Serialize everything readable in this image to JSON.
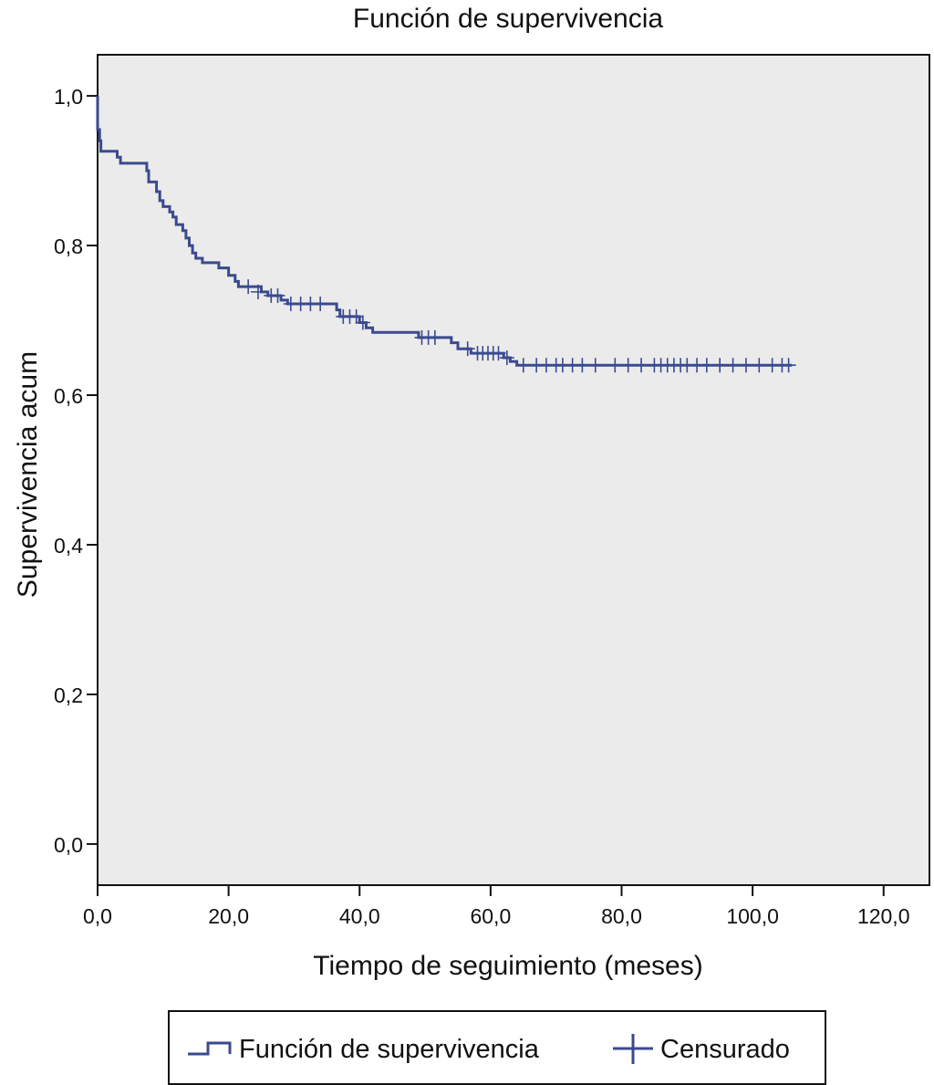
{
  "chart_data": {
    "type": "line",
    "title": "Función de supervivencia",
    "xlabel": "Tiempo de seguimiento (meses)",
    "ylabel": "Supervivencia acum",
    "xlim": [
      0,
      127
    ],
    "ylim": [
      -0.055,
      1.055
    ],
    "x_ticks": [
      0,
      20,
      40,
      60,
      80,
      100,
      120
    ],
    "x_tick_labels": [
      "0,0",
      "20,0",
      "40,0",
      "60,0",
      "80,0",
      "100,0",
      "120,0"
    ],
    "y_ticks": [
      0,
      0.2,
      0.4,
      0.6,
      0.8,
      1.0
    ],
    "y_tick_labels": [
      "0,0",
      "0,2",
      "0,4",
      "0,6",
      "0,8",
      "1,0"
    ],
    "grid": false,
    "legend": "bottom",
    "colors": {
      "series": "#3b4a8f",
      "plot_background": "#ebebeb",
      "axis": "#111111"
    },
    "series": [
      {
        "name": "Función de supervivencia",
        "step": true,
        "points": [
          [
            0,
            1.0
          ],
          [
            0,
            0.955
          ],
          [
            0.3,
            0.94
          ],
          [
            0.5,
            0.926
          ],
          [
            3,
            0.918
          ],
          [
            3.5,
            0.91
          ],
          [
            7.5,
            0.9
          ],
          [
            7.8,
            0.885
          ],
          [
            9,
            0.872
          ],
          [
            9.5,
            0.86
          ],
          [
            10,
            0.852
          ],
          [
            11,
            0.845
          ],
          [
            11.5,
            0.838
          ],
          [
            12,
            0.828
          ],
          [
            13,
            0.82
          ],
          [
            13.5,
            0.81
          ],
          [
            14,
            0.8
          ],
          [
            14.5,
            0.79
          ],
          [
            15,
            0.783
          ],
          [
            16,
            0.777
          ],
          [
            18.5,
            0.77
          ],
          [
            20,
            0.76
          ],
          [
            21,
            0.752
          ],
          [
            21.5,
            0.745
          ],
          [
            25,
            0.738
          ],
          [
            26,
            0.733
          ],
          [
            28,
            0.727
          ],
          [
            29,
            0.722
          ],
          [
            36.5,
            0.714
          ],
          [
            37,
            0.705
          ],
          [
            40,
            0.697
          ],
          [
            41,
            0.69
          ],
          [
            42,
            0.684
          ],
          [
            49,
            0.677
          ],
          [
            54,
            0.67
          ],
          [
            55,
            0.662
          ],
          [
            57,
            0.656
          ],
          [
            62,
            0.65
          ],
          [
            63,
            0.645
          ],
          [
            64,
            0.64
          ],
          [
            106,
            0.64
          ]
        ]
      },
      {
        "name": "Censurado",
        "marker": "+",
        "points": [
          [
            23,
            0.745
          ],
          [
            24.5,
            0.738
          ],
          [
            26.5,
            0.733
          ],
          [
            27.5,
            0.733
          ],
          [
            29.5,
            0.722
          ],
          [
            31,
            0.722
          ],
          [
            32.5,
            0.722
          ],
          [
            34,
            0.722
          ],
          [
            37.5,
            0.705
          ],
          [
            38.5,
            0.705
          ],
          [
            39.5,
            0.705
          ],
          [
            40.5,
            0.697
          ],
          [
            49.5,
            0.677
          ],
          [
            50.5,
            0.677
          ],
          [
            51.5,
            0.677
          ],
          [
            56.5,
            0.662
          ],
          [
            58,
            0.656
          ],
          [
            58.8,
            0.656
          ],
          [
            59.6,
            0.656
          ],
          [
            60.4,
            0.656
          ],
          [
            61.2,
            0.656
          ],
          [
            62.5,
            0.65
          ],
          [
            65,
            0.64
          ],
          [
            67,
            0.64
          ],
          [
            68.5,
            0.64
          ],
          [
            70,
            0.64
          ],
          [
            71,
            0.64
          ],
          [
            72.5,
            0.64
          ],
          [
            74,
            0.64
          ],
          [
            76,
            0.64
          ],
          [
            79,
            0.64
          ],
          [
            81,
            0.64
          ],
          [
            83,
            0.64
          ],
          [
            85,
            0.64
          ],
          [
            86,
            0.64
          ],
          [
            87,
            0.64
          ],
          [
            88,
            0.64
          ],
          [
            89,
            0.64
          ],
          [
            90,
            0.64
          ],
          [
            91.5,
            0.64
          ],
          [
            93,
            0.64
          ],
          [
            95,
            0.64
          ],
          [
            97,
            0.64
          ],
          [
            99,
            0.64
          ],
          [
            101,
            0.64
          ],
          [
            103,
            0.64
          ],
          [
            104.5,
            0.64
          ],
          [
            105.5,
            0.64
          ]
        ]
      }
    ]
  }
}
